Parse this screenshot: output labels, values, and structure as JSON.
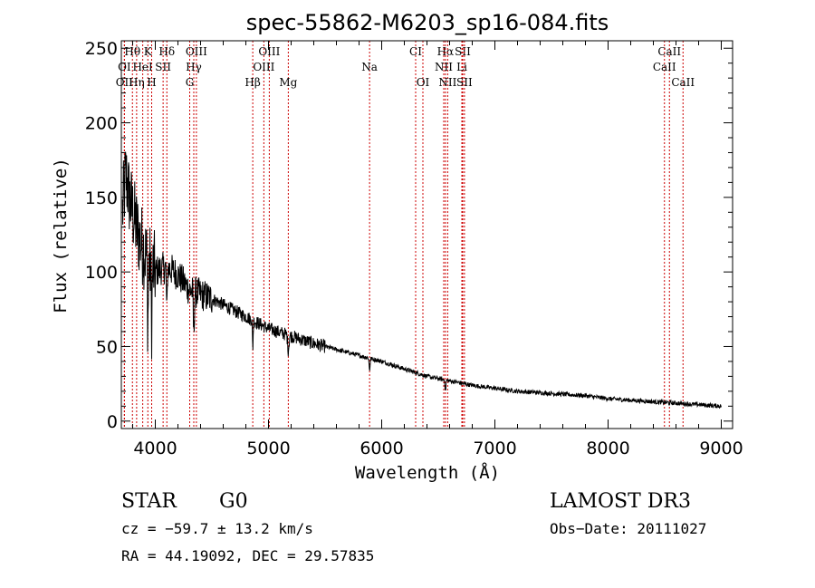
{
  "chart_data": {
    "type": "line",
    "title": "spec-55862-M6203_sp16-084.fits",
    "xlabel": "Wavelength (Å)",
    "ylabel": "Flux (relative)",
    "xlim": [
      3700,
      9100
    ],
    "ylim": [
      -5,
      255
    ],
    "x_ticks": [
      4000,
      5000,
      6000,
      7000,
      8000,
      9000
    ],
    "x_tick_labels": [
      "4000",
      "5000",
      "6000",
      "7000",
      "8000",
      "9000"
    ],
    "y_ticks": [
      0,
      50,
      100,
      150,
      200,
      250
    ],
    "y_tick_labels": [
      "0",
      "50",
      "100",
      "150",
      "200",
      "250"
    ],
    "line_color": "#000000",
    "marker_color": "#cc0000",
    "spectrum_anchors": {
      "x": [
        3710,
        3740,
        3770,
        3800,
        3850,
        3900,
        3950,
        4000,
        4050,
        4100,
        4150,
        4200,
        4300,
        4400,
        4500,
        4600,
        4700,
        4800,
        4900,
        5000,
        5200,
        5400,
        5600,
        5800,
        6000,
        6200,
        6400,
        6600,
        6800,
        7000,
        7200,
        7400,
        7600,
        7800,
        8000,
        8200,
        8400,
        8600,
        8800,
        9000
      ],
      "y": [
        140,
        165,
        150,
        140,
        125,
        115,
        105,
        100,
        102,
        103,
        101,
        98,
        88,
        85,
        82,
        78,
        74,
        70,
        66,
        62,
        57,
        52,
        48,
        44,
        40,
        35,
        30,
        27,
        24,
        22,
        20,
        19,
        18,
        17,
        15,
        14,
        13,
        12,
        11,
        10
      ]
    },
    "spectral_lines": [
      {
        "label": "Hθ",
        "wl": 3798,
        "row": 0
      },
      {
        "label": "K",
        "wl": 3934,
        "row": 0
      },
      {
        "label": "Hδ",
        "wl": 4102,
        "row": 0
      },
      {
        "label": "OIII",
        "wl": 4363,
        "row": 0
      },
      {
        "label": "OIII",
        "wl": 5007,
        "row": 0
      },
      {
        "label": "CI",
        "wl": 6300,
        "row": 0
      },
      {
        "label": "Hα",
        "wl": 6563,
        "row": 0
      },
      {
        "label": "SII",
        "wl": 6716,
        "row": 0
      },
      {
        "label": "CaII",
        "wl": 8542,
        "row": 0
      },
      {
        "label": "OI",
        "wl": 3727,
        "row": 1
      },
      {
        "label": "HeI",
        "wl": 3889,
        "row": 1
      },
      {
        "label": "SII",
        "wl": 4069,
        "row": 1
      },
      {
        "label": "Hγ",
        "wl": 4340,
        "row": 1
      },
      {
        "label": "OIII",
        "wl": 4959,
        "row": 1
      },
      {
        "label": "Na",
        "wl": 5893,
        "row": 1
      },
      {
        "label": "NII",
        "wl": 6548,
        "row": 1
      },
      {
        "label": "Li",
        "wl": 6708,
        "row": 1
      },
      {
        "label": "CaII",
        "wl": 8498,
        "row": 1
      },
      {
        "label": "OII",
        "wl": 3727,
        "row": 2
      },
      {
        "label": "Hη",
        "wl": 3835,
        "row": 2
      },
      {
        "label": "H",
        "wl": 3968,
        "row": 2
      },
      {
        "label": "G",
        "wl": 4304,
        "row": 2
      },
      {
        "label": "Hβ",
        "wl": 4861,
        "row": 2
      },
      {
        "label": "Mg",
        "wl": 5175,
        "row": 2
      },
      {
        "label": "OI",
        "wl": 6364,
        "row": 2
      },
      {
        "label": "NII",
        "wl": 6583,
        "row": 2
      },
      {
        "label": "SII",
        "wl": 6731,
        "row": 2
      },
      {
        "label": "CaII",
        "wl": 8662,
        "row": 2
      }
    ]
  },
  "info": {
    "class": "STAR",
    "subclass": "G0",
    "survey": "LAMOST DR3",
    "cz": "cz = −59.7 ± 13.2 km/s",
    "obs_date": "Obs−Date: 20111027",
    "radec": "RA =  44.19092, DEC =  29.57835"
  }
}
